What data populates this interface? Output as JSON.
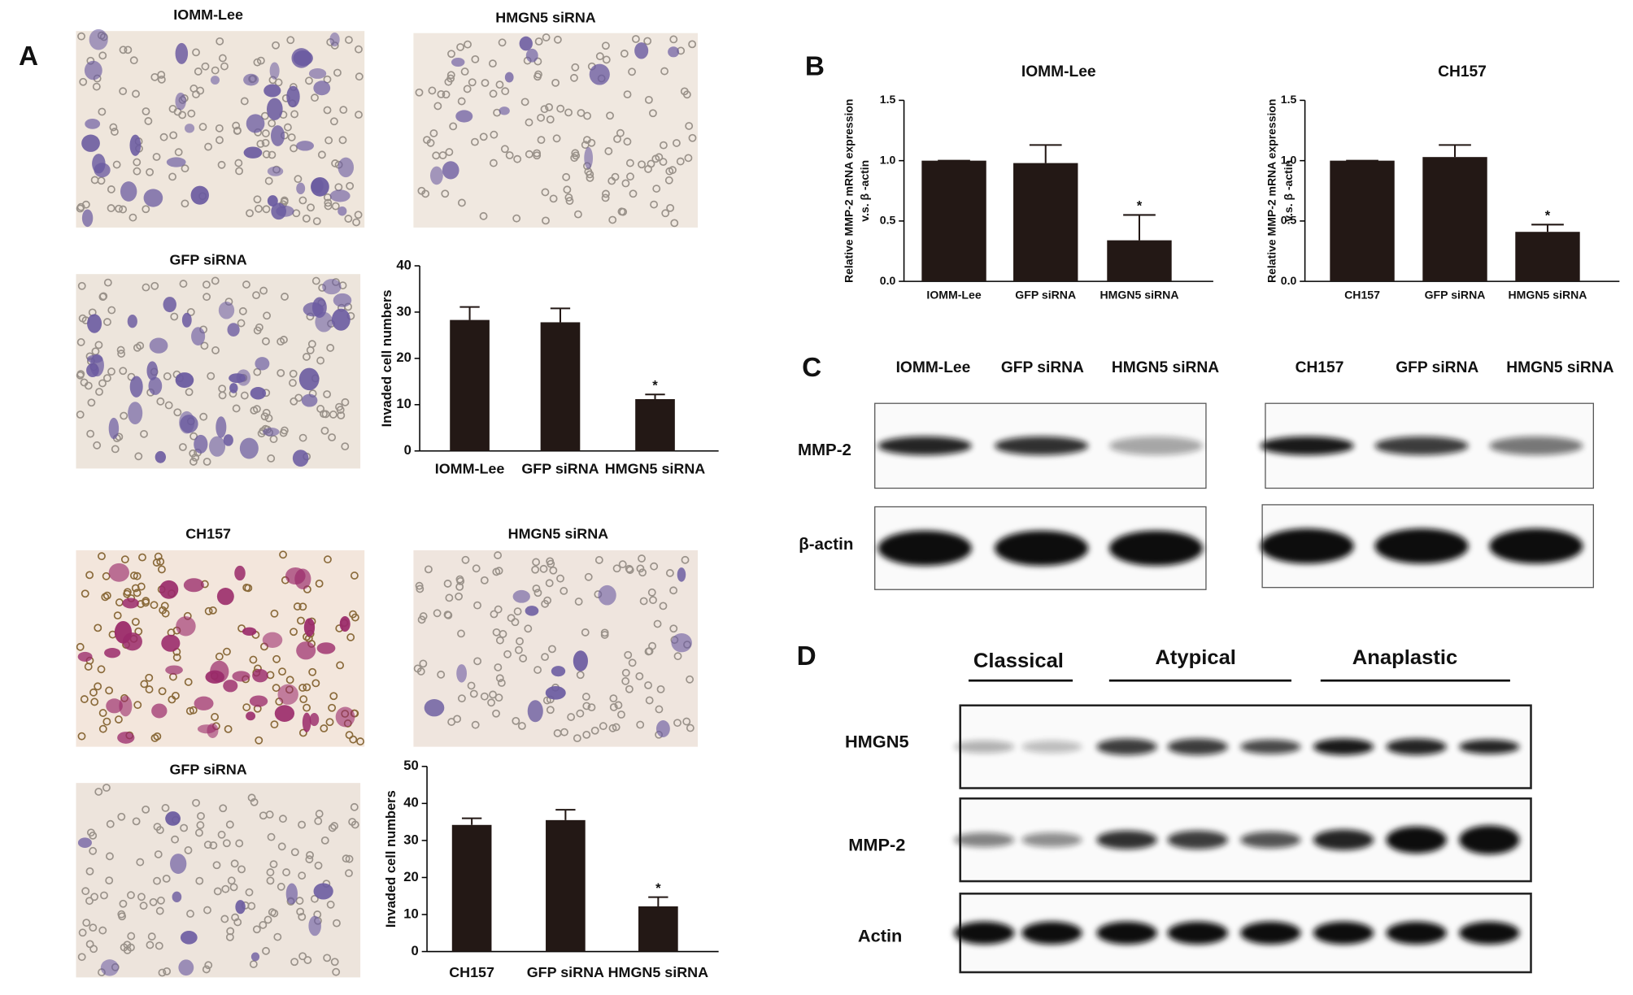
{
  "figure": {
    "panel_labels": [
      "A",
      "B",
      "C",
      "D"
    ],
    "micrograph_captions": [
      "IOMM-Lee",
      "HMGN5 siRNA",
      "GFP siRNA",
      "CH157",
      "HMGN5 siRNA",
      "GFP siRNA"
    ],
    "blot_c": {
      "columns": [
        "IOMM-Lee",
        "GFP siRNA",
        "HMGN5 siRNA",
        "CH157",
        "GFP siRNA",
        "HMGN5 siRNA"
      ],
      "rows": [
        "MMP-2",
        "β-actin"
      ]
    },
    "blot_d": {
      "groups": [
        "Classical",
        "Atypical",
        "Anaplastic"
      ],
      "rows": [
        "HMGN5",
        "MMP-2",
        "Actin"
      ]
    }
  },
  "chart_data": [
    {
      "type": "bar",
      "ylabel": "Invaded cell numbers",
      "categories": [
        "IOMM-Lee",
        "GFP siRNA",
        "HMGN5 siRNA"
      ],
      "values": [
        28.3,
        27.8,
        11.2
      ],
      "errors": [
        2.8,
        3.0,
        1.0
      ],
      "annotations": [
        null,
        null,
        "*"
      ],
      "color": "#231815",
      "ylim": [
        0,
        40
      ],
      "yticks": [
        0,
        10,
        20,
        30,
        40
      ]
    },
    {
      "type": "bar",
      "ylabel": "Invaded cell numbers",
      "categories": [
        "CH157",
        "GFP siRNA",
        "HMGN5 siRNA"
      ],
      "values": [
        34.2,
        35.5,
        12.2
      ],
      "errors": [
        1.8,
        2.8,
        2.5
      ],
      "annotations": [
        null,
        null,
        "*"
      ],
      "color": "#231815",
      "ylim": [
        0,
        50
      ],
      "yticks": [
        0,
        10,
        20,
        30,
        40,
        50
      ]
    },
    {
      "type": "bar",
      "title": "IOMM-Lee",
      "ylabel": [
        "Relative MMP-2 mRNA expression",
        "v.s. β -actin"
      ],
      "categories": [
        "IOMM-Lee",
        "GFP siRNA",
        "HMGN5 siRNA"
      ],
      "values": [
        1.0,
        0.98,
        0.34
      ],
      "errors": [
        0,
        0.15,
        0.21
      ],
      "annotations": [
        null,
        null,
        "*"
      ],
      "color": "#231815",
      "ylim": [
        0,
        1.5
      ],
      "yticks": [
        {
          "value": 0,
          "label": "0.0"
        },
        {
          "value": 0.5,
          "label": "0.5"
        },
        {
          "value": 1,
          "label": "1.0"
        },
        {
          "value": 1.5,
          "label": "1.5"
        }
      ]
    },
    {
      "type": "bar",
      "title": "CH157",
      "ylabel": [
        "Relative MMP-2 mRNA expression",
        "v.s. β -actin"
      ],
      "categories": [
        "CH157",
        "GFP siRNA",
        "HMGN5 siRNA"
      ],
      "values": [
        1.0,
        1.03,
        0.41
      ],
      "errors": [
        0,
        0.1,
        0.06
      ],
      "annotations": [
        null,
        null,
        "*"
      ],
      "color": "#231815",
      "ylim": [
        0,
        1.5
      ],
      "yticks": [
        {
          "value": 0,
          "label": "0.0"
        },
        {
          "value": 0.5,
          "label": "0.5"
        },
        {
          "value": 1,
          "label": "1.0"
        },
        {
          "value": 1.5,
          "label": "1.5"
        }
      ]
    }
  ]
}
